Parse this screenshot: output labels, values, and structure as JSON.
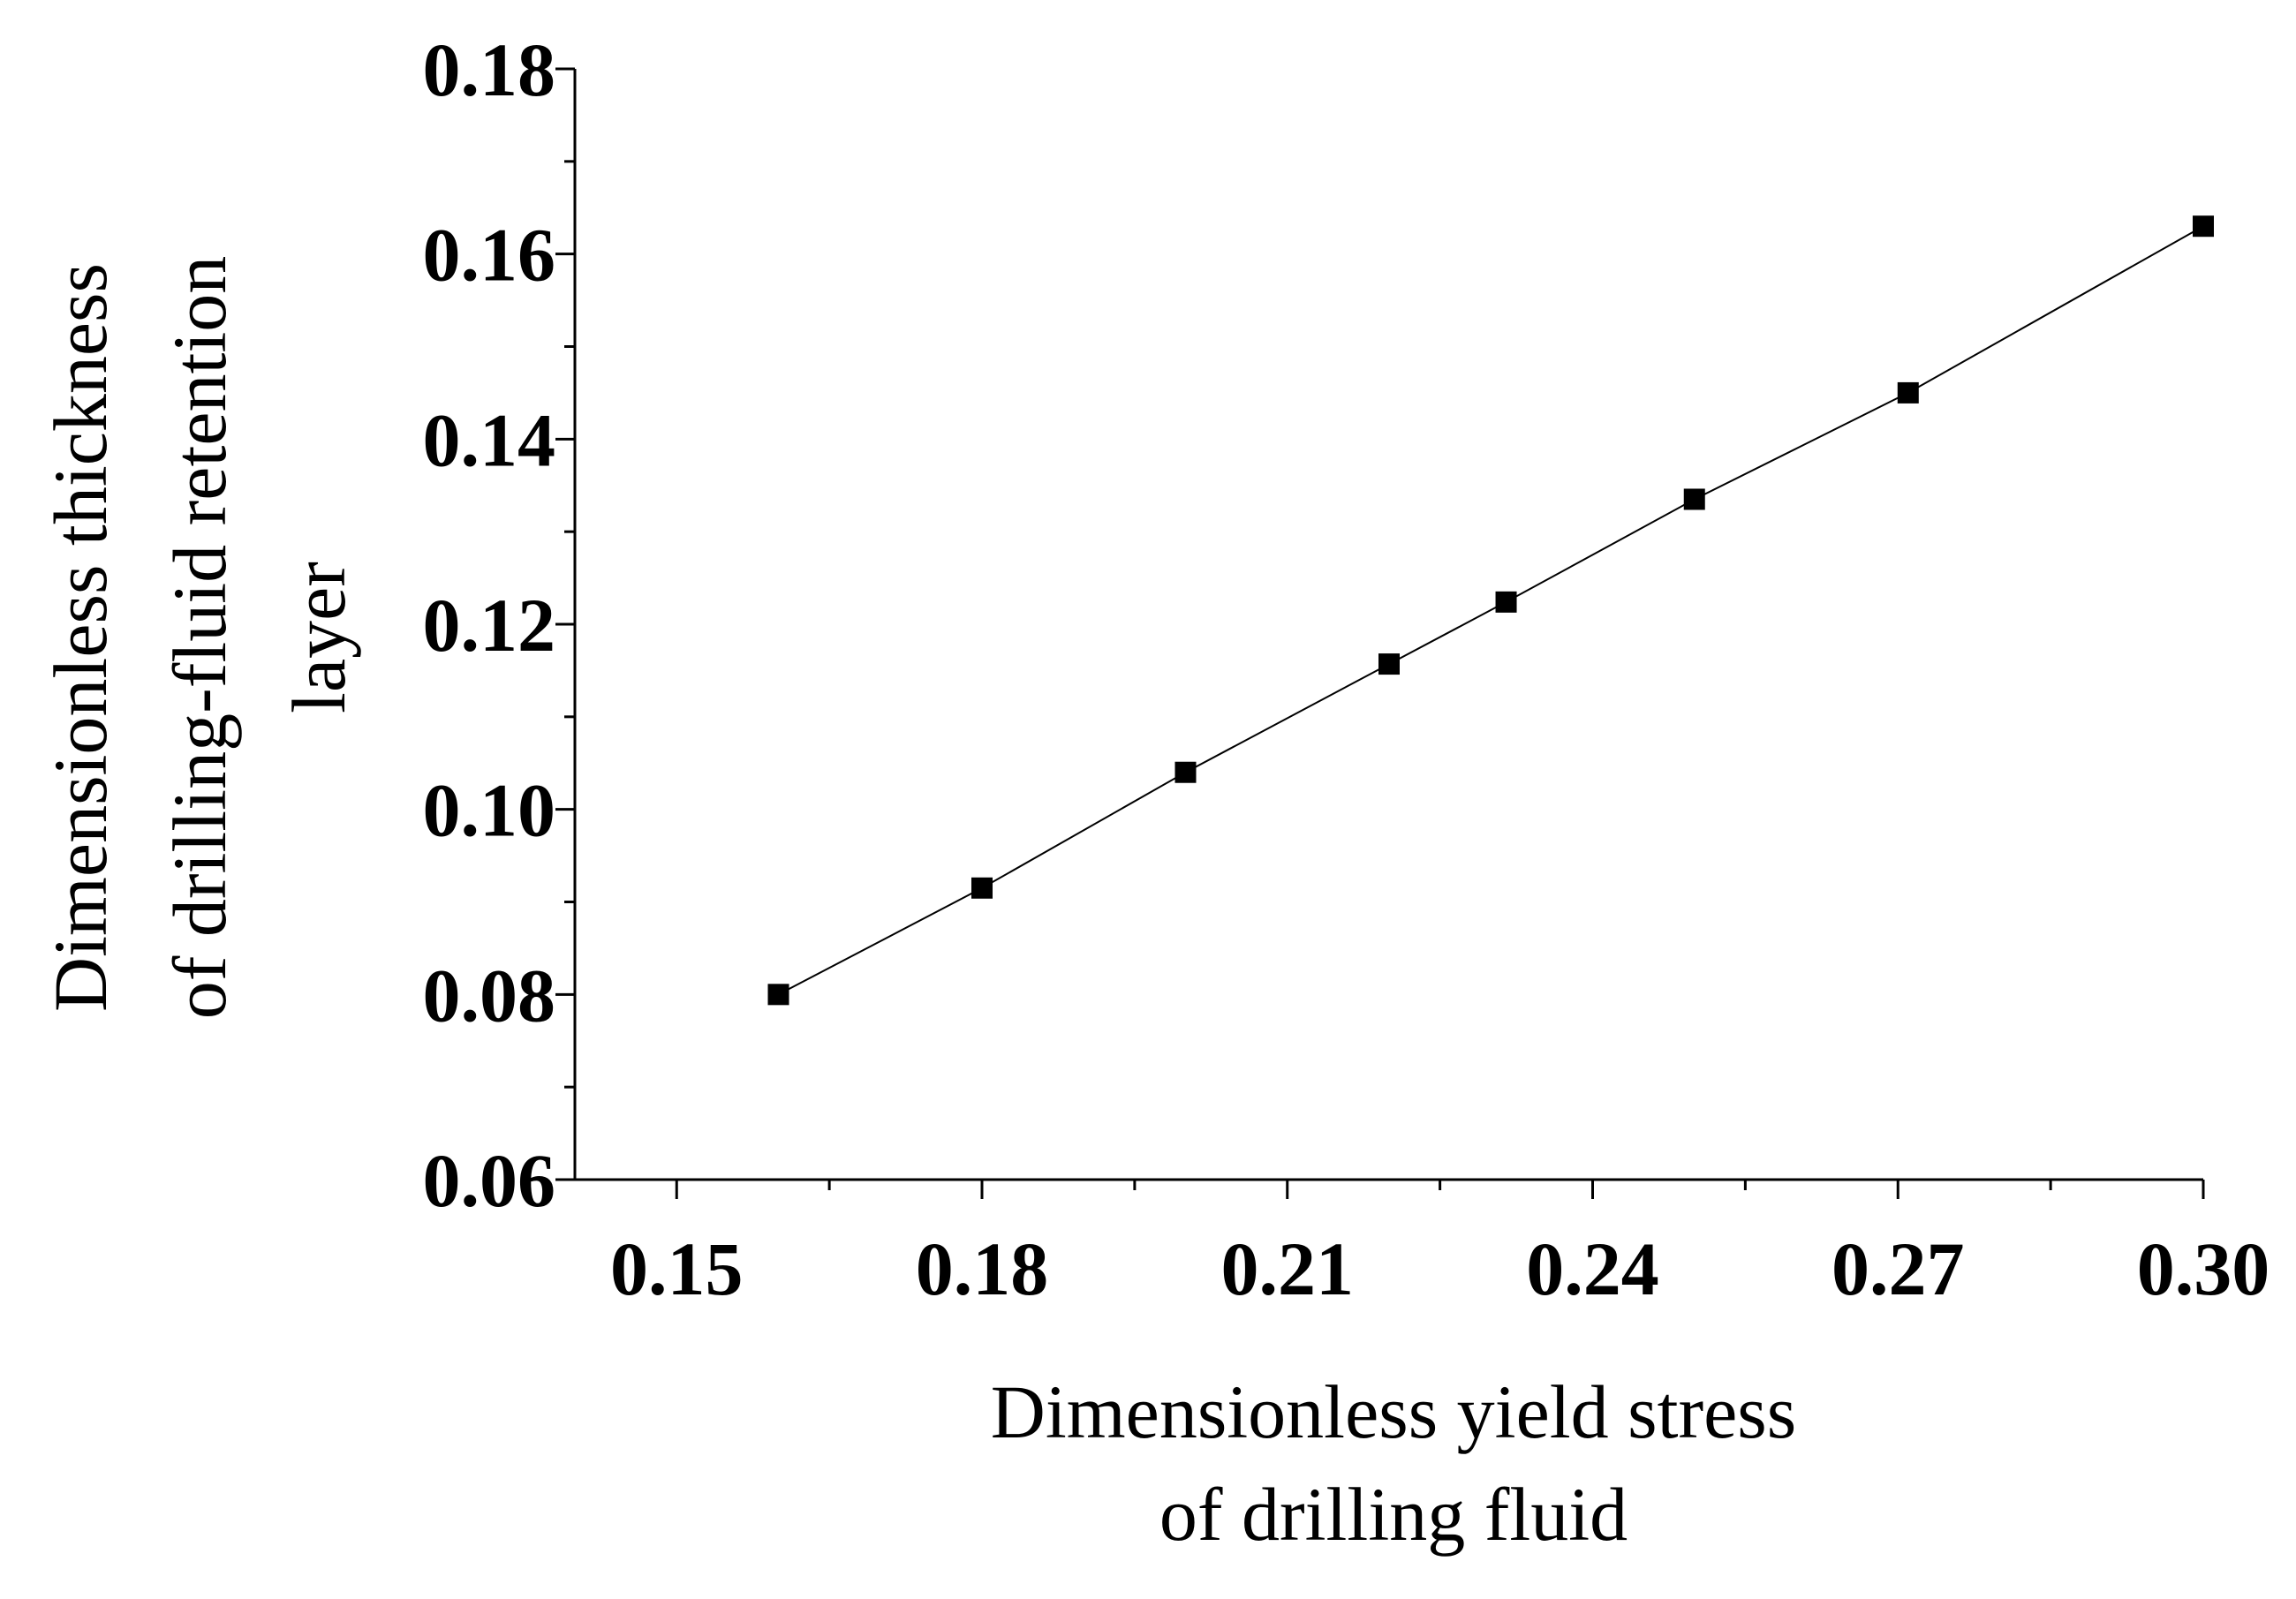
{
  "chart_data": {
    "type": "line",
    "xlabel": [
      "Dimensionless yield stress",
      "of drilling fluid"
    ],
    "ylabel": [
      "Dimensionless thickness",
      "of drilling-fluid retention",
      "layer"
    ],
    "xlim": [
      0.14,
      0.3
    ],
    "ylim": [
      0.06,
      0.18
    ],
    "xticks": [
      "0.15",
      "0.18",
      "0.21",
      "0.24",
      "0.27",
      "0.30"
    ],
    "yticks": [
      "0.06",
      "0.08",
      "0.10",
      "0.12",
      "0.14",
      "0.16",
      "0.18"
    ],
    "grid": false,
    "marker": "square",
    "line_color": "#000000",
    "marker_color": "#000000",
    "series": [
      {
        "x": [
          0.16,
          0.18,
          0.2,
          0.22,
          0.2315,
          0.25,
          0.271,
          0.3
        ],
        "y": [
          0.08,
          0.0915,
          0.104,
          0.1157,
          0.1224,
          0.1335,
          0.145,
          0.163
        ]
      }
    ]
  }
}
